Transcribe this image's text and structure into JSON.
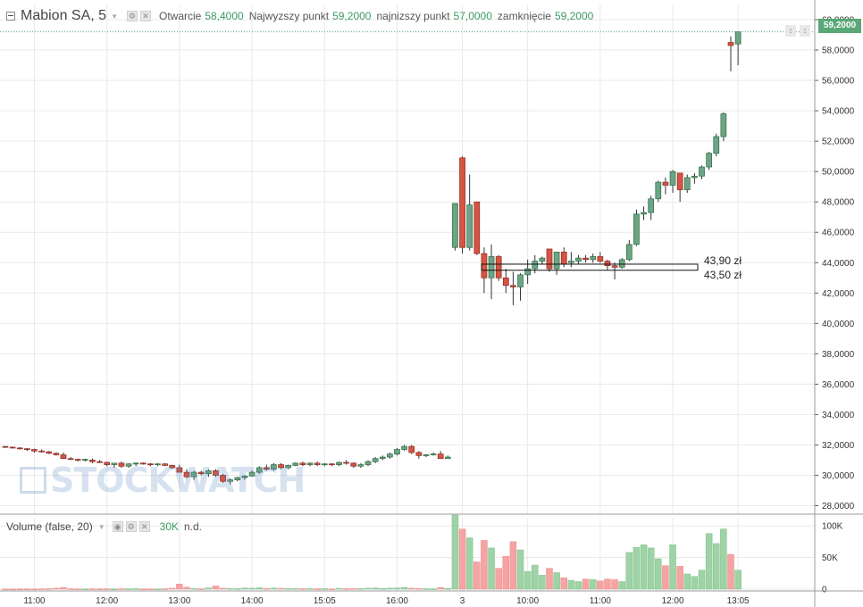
{
  "header": {
    "symbol": "Mabion SA, 5",
    "settings_icon": "gear-icon",
    "remove_icon": "close-icon",
    "open_label": "Otwarcie",
    "open_value": "58,4000",
    "high_label": "Najwyzszy punkt",
    "high_value": "59,2000",
    "low_label": "najnizszy punkt",
    "low_value": "57,0000",
    "close_label": "zamknięcie",
    "close_value": "59,2000"
  },
  "last_price_label": "59,2000",
  "volume_header": {
    "title": "Volume (false, 20)",
    "value": "30K",
    "na": "n.d."
  },
  "watermark": "STOCKWATCH",
  "annotations": {
    "upper": "43,90 zł",
    "lower": "43,50 zł"
  },
  "colors": {
    "up": "#5aa777",
    "down": "#d8413f",
    "up_fill": "#6ba583",
    "down_fill": "#d75442",
    "vol_up": "#9ed3a6",
    "vol_down": "#f5a3a3",
    "grid": "#e9e9e9"
  },
  "chart_data": {
    "type": "candlestick",
    "price_axis": {
      "min": 27500,
      "max": 61000,
      "ticks": [
        28000,
        30000,
        32000,
        34000,
        36000,
        38000,
        40000,
        42000,
        44000,
        46000,
        48000,
        50000,
        52000,
        54000,
        56000,
        58000,
        60000
      ],
      "labels": [
        "28,0000",
        "30,0000",
        "32,0000",
        "34,0000",
        "36,0000",
        "38,0000",
        "40,0000",
        "42,0000",
        "44,0000",
        "46,0000",
        "48,0000",
        "50,0000",
        "52,0000",
        "54,0000",
        "56,0000",
        "58,0000",
        "60,0000"
      ]
    },
    "volume_axis": {
      "min": 0,
      "max": 110000,
      "ticks": [
        0,
        50000,
        100000
      ],
      "labels": [
        "0",
        "50K",
        "100K"
      ]
    },
    "time_axis": {
      "labels": [
        "11:00",
        "12:00",
        "13:00",
        "14:00",
        "15:05",
        "16:00",
        "3",
        "10:00",
        "11:00",
        "12:00",
        "13:05"
      ],
      "label_bar_index": [
        4,
        14,
        24,
        34,
        44,
        54,
        63,
        72,
        82,
        92,
        101
      ]
    },
    "horizontal_band": {
      "upper": 43.9,
      "lower": 43.5
    },
    "candles": [
      {
        "o": 31.9,
        "h": 31.9,
        "l": 31.8,
        "c": 31.85,
        "v": 300
      },
      {
        "o": 31.85,
        "h": 31.9,
        "l": 31.8,
        "c": 31.8,
        "v": 200
      },
      {
        "o": 31.8,
        "h": 31.85,
        "l": 31.7,
        "c": 31.75,
        "v": 400
      },
      {
        "o": 31.75,
        "h": 31.8,
        "l": 31.6,
        "c": 31.7,
        "v": 500
      },
      {
        "o": 31.7,
        "h": 31.75,
        "l": 31.5,
        "c": 31.6,
        "v": 300
      },
      {
        "o": 31.6,
        "h": 31.7,
        "l": 31.5,
        "c": 31.55,
        "v": 600
      },
      {
        "o": 31.55,
        "h": 31.6,
        "l": 31.4,
        "c": 31.45,
        "v": 800
      },
      {
        "o": 31.45,
        "h": 31.5,
        "l": 31.3,
        "c": 31.35,
        "v": 1500
      },
      {
        "o": 31.35,
        "h": 31.5,
        "l": 31.3,
        "c": 31.1,
        "v": 2500
      },
      {
        "o": 31.1,
        "h": 31.2,
        "l": 31.0,
        "c": 31.05,
        "v": 700
      },
      {
        "o": 31.05,
        "h": 31.1,
        "l": 30.9,
        "c": 31.0,
        "v": 500
      },
      {
        "o": 31.0,
        "h": 31.1,
        "l": 30.9,
        "c": 31.05,
        "v": 400
      },
      {
        "o": 31.0,
        "h": 31.1,
        "l": 30.8,
        "c": 30.9,
        "v": 600
      },
      {
        "o": 30.9,
        "h": 31.0,
        "l": 30.8,
        "c": 30.85,
        "v": 500
      },
      {
        "o": 30.85,
        "h": 30.9,
        "l": 30.6,
        "c": 30.7,
        "v": 700
      },
      {
        "o": 30.7,
        "h": 30.8,
        "l": 30.5,
        "c": 30.8,
        "v": 300
      },
      {
        "o": 30.8,
        "h": 30.9,
        "l": 30.5,
        "c": 30.6,
        "v": 800
      },
      {
        "o": 30.6,
        "h": 30.8,
        "l": 30.5,
        "c": 30.75,
        "v": 600
      },
      {
        "o": 30.75,
        "h": 30.85,
        "l": 30.6,
        "c": 30.8,
        "v": 900
      },
      {
        "o": 30.8,
        "h": 30.85,
        "l": 30.7,
        "c": 30.75,
        "v": 400
      },
      {
        "o": 30.75,
        "h": 30.8,
        "l": 30.6,
        "c": 30.7,
        "v": 500
      },
      {
        "o": 30.7,
        "h": 30.8,
        "l": 30.6,
        "c": 30.75,
        "v": 300
      },
      {
        "o": 30.75,
        "h": 30.8,
        "l": 30.6,
        "c": 30.65,
        "v": 700
      },
      {
        "o": 30.65,
        "h": 30.7,
        "l": 30.4,
        "c": 30.5,
        "v": 1500
      },
      {
        "o": 30.5,
        "h": 30.7,
        "l": 30.3,
        "c": 30.2,
        "v": 8000
      },
      {
        "o": 30.2,
        "h": 30.4,
        "l": 29.8,
        "c": 29.9,
        "v": 3000
      },
      {
        "o": 29.9,
        "h": 30.3,
        "l": 29.7,
        "c": 30.2,
        "v": 1200
      },
      {
        "o": 30.2,
        "h": 30.3,
        "l": 30.0,
        "c": 30.1,
        "v": 600
      },
      {
        "o": 30.1,
        "h": 30.4,
        "l": 29.9,
        "c": 30.3,
        "v": 2000
      },
      {
        "o": 30.3,
        "h": 30.4,
        "l": 29.9,
        "c": 30.0,
        "v": 5000
      },
      {
        "o": 30.0,
        "h": 30.1,
        "l": 29.5,
        "c": 29.6,
        "v": 1500
      },
      {
        "o": 29.6,
        "h": 29.8,
        "l": 29.4,
        "c": 29.7,
        "v": 1200
      },
      {
        "o": 29.7,
        "h": 29.9,
        "l": 29.6,
        "c": 29.85,
        "v": 800
      },
      {
        "o": 29.85,
        "h": 30.0,
        "l": 29.7,
        "c": 29.95,
        "v": 1800
      },
      {
        "o": 29.95,
        "h": 30.3,
        "l": 29.9,
        "c": 30.2,
        "v": 1500
      },
      {
        "o": 30.2,
        "h": 30.6,
        "l": 30.1,
        "c": 30.5,
        "v": 2200
      },
      {
        "o": 30.5,
        "h": 30.7,
        "l": 30.3,
        "c": 30.4,
        "v": 1000
      },
      {
        "o": 30.4,
        "h": 30.8,
        "l": 30.3,
        "c": 30.7,
        "v": 1800
      },
      {
        "o": 30.7,
        "h": 30.8,
        "l": 30.4,
        "c": 30.5,
        "v": 1300
      },
      {
        "o": 30.5,
        "h": 30.7,
        "l": 30.4,
        "c": 30.65,
        "v": 1000
      },
      {
        "o": 30.65,
        "h": 30.85,
        "l": 30.6,
        "c": 30.8,
        "v": 1200
      },
      {
        "o": 30.8,
        "h": 30.9,
        "l": 30.6,
        "c": 30.7,
        "v": 700
      },
      {
        "o": 30.7,
        "h": 30.85,
        "l": 30.6,
        "c": 30.8,
        "v": 900
      },
      {
        "o": 30.8,
        "h": 30.9,
        "l": 30.6,
        "c": 30.7,
        "v": 600
      },
      {
        "o": 30.7,
        "h": 30.8,
        "l": 30.6,
        "c": 30.75,
        "v": 800
      },
      {
        "o": 30.75,
        "h": 30.8,
        "l": 30.6,
        "c": 30.7,
        "v": 500
      },
      {
        "o": 30.7,
        "h": 30.9,
        "l": 30.6,
        "c": 30.85,
        "v": 1300
      },
      {
        "o": 30.85,
        "h": 31.0,
        "l": 30.7,
        "c": 30.8,
        "v": 700
      },
      {
        "o": 30.8,
        "h": 30.85,
        "l": 30.5,
        "c": 30.6,
        "v": 900
      },
      {
        "o": 30.6,
        "h": 30.8,
        "l": 30.5,
        "c": 30.7,
        "v": 1100
      },
      {
        "o": 30.7,
        "h": 31.0,
        "l": 30.6,
        "c": 30.9,
        "v": 1500
      },
      {
        "o": 30.9,
        "h": 31.2,
        "l": 30.8,
        "c": 31.1,
        "v": 1800
      },
      {
        "o": 31.1,
        "h": 31.3,
        "l": 31.0,
        "c": 31.2,
        "v": 900
      },
      {
        "o": 31.2,
        "h": 31.5,
        "l": 31.1,
        "c": 31.4,
        "v": 1600
      },
      {
        "o": 31.4,
        "h": 31.8,
        "l": 31.3,
        "c": 31.7,
        "v": 2000
      },
      {
        "o": 31.7,
        "h": 32.0,
        "l": 31.6,
        "c": 31.9,
        "v": 2500
      },
      {
        "o": 31.9,
        "h": 32.0,
        "l": 31.4,
        "c": 31.5,
        "v": 1500
      },
      {
        "o": 31.5,
        "h": 31.6,
        "l": 31.1,
        "c": 31.3,
        "v": 1200
      },
      {
        "o": 31.3,
        "h": 31.4,
        "l": 31.2,
        "c": 31.35,
        "v": 800
      },
      {
        "o": 31.35,
        "h": 31.5,
        "l": 31.3,
        "c": 31.4,
        "v": 600
      },
      {
        "o": 31.4,
        "h": 31.6,
        "l": 31.2,
        "c": 31.1,
        "v": 2500
      },
      {
        "o": 31.1,
        "h": 31.3,
        "l": 31.1,
        "c": 31.2,
        "v": 1000
      },
      {
        "o": 45.0,
        "h": 47.9,
        "l": 44.8,
        "c": 47.9,
        "v": 117000
      },
      {
        "o": 50.9,
        "h": 51.0,
        "l": 44.6,
        "c": 45.0,
        "v": 95000
      },
      {
        "o": 45.0,
        "h": 49.8,
        "l": 44.8,
        "c": 47.8,
        "v": 81000
      },
      {
        "o": 48.0,
        "h": 48.0,
        "l": 44.5,
        "c": 44.6,
        "v": 43000
      },
      {
        "o": 44.6,
        "h": 45.0,
        "l": 42.0,
        "c": 43.0,
        "v": 77000
      },
      {
        "o": 43.0,
        "h": 45.2,
        "l": 41.6,
        "c": 44.4,
        "v": 65000
      },
      {
        "o": 44.4,
        "h": 44.5,
        "l": 42.8,
        "c": 43.0,
        "v": 33000
      },
      {
        "o": 43.0,
        "h": 43.6,
        "l": 42.0,
        "c": 42.5,
        "v": 52000
      },
      {
        "o": 42.5,
        "h": 43.4,
        "l": 41.2,
        "c": 42.4,
        "v": 75000
      },
      {
        "o": 42.4,
        "h": 43.3,
        "l": 41.5,
        "c": 43.2,
        "v": 62000
      },
      {
        "o": 43.2,
        "h": 44.2,
        "l": 42.6,
        "c": 43.6,
        "v": 28000
      },
      {
        "o": 43.6,
        "h": 44.5,
        "l": 43.3,
        "c": 44.1,
        "v": 38000
      },
      {
        "o": 44.1,
        "h": 44.4,
        "l": 43.9,
        "c": 44.3,
        "v": 22000
      },
      {
        "o": 44.9,
        "h": 44.9,
        "l": 43.4,
        "c": 43.6,
        "v": 33000
      },
      {
        "o": 43.6,
        "h": 44.6,
        "l": 43.2,
        "c": 44.7,
        "v": 26000
      },
      {
        "o": 44.7,
        "h": 45.0,
        "l": 43.7,
        "c": 43.9,
        "v": 18000
      },
      {
        "o": 44.0,
        "h": 44.7,
        "l": 43.7,
        "c": 44.1,
        "v": 14000
      },
      {
        "o": 44.1,
        "h": 44.5,
        "l": 43.9,
        "c": 44.3,
        "v": 12000
      },
      {
        "o": 44.3,
        "h": 44.5,
        "l": 44.0,
        "c": 44.2,
        "v": 16000
      },
      {
        "o": 44.2,
        "h": 44.6,
        "l": 44.0,
        "c": 44.4,
        "v": 15000
      },
      {
        "o": 44.4,
        "h": 44.7,
        "l": 44.0,
        "c": 44.1,
        "v": 13000
      },
      {
        "o": 44.1,
        "h": 44.2,
        "l": 43.5,
        "c": 43.8,
        "v": 16000
      },
      {
        "o": 43.8,
        "h": 44.0,
        "l": 42.9,
        "c": 43.7,
        "v": 15000
      },
      {
        "o": 43.7,
        "h": 44.3,
        "l": 43.6,
        "c": 44.2,
        "v": 12000
      },
      {
        "o": 44.2,
        "h": 45.5,
        "l": 44.1,
        "c": 45.2,
        "v": 58000
      },
      {
        "o": 45.2,
        "h": 47.5,
        "l": 45.1,
        "c": 47.2,
        "v": 66000
      },
      {
        "o": 47.2,
        "h": 47.7,
        "l": 46.8,
        "c": 47.3,
        "v": 70000
      },
      {
        "o": 47.3,
        "h": 48.4,
        "l": 46.8,
        "c": 48.2,
        "v": 65000
      },
      {
        "o": 48.2,
        "h": 49.4,
        "l": 48.0,
        "c": 49.3,
        "v": 48000
      },
      {
        "o": 49.3,
        "h": 49.6,
        "l": 48.5,
        "c": 49.1,
        "v": 37000
      },
      {
        "o": 49.1,
        "h": 50.1,
        "l": 48.6,
        "c": 50.0,
        "v": 70000
      },
      {
        "o": 49.9,
        "h": 49.9,
        "l": 48.0,
        "c": 48.8,
        "v": 36000
      },
      {
        "o": 48.8,
        "h": 49.8,
        "l": 48.6,
        "c": 49.6,
        "v": 24000
      },
      {
        "o": 49.6,
        "h": 49.9,
        "l": 49.2,
        "c": 49.7,
        "v": 20000
      },
      {
        "o": 49.7,
        "h": 50.4,
        "l": 49.5,
        "c": 50.3,
        "v": 30000
      },
      {
        "o": 50.3,
        "h": 51.3,
        "l": 50.1,
        "c": 51.2,
        "v": 88000
      },
      {
        "o": 51.2,
        "h": 52.5,
        "l": 51.0,
        "c": 52.3,
        "v": 72000
      },
      {
        "o": 52.3,
        "h": 53.9,
        "l": 52.0,
        "c": 53.8,
        "v": 95000
      },
      {
        "o": 58.5,
        "h": 58.9,
        "l": 56.6,
        "c": 58.3,
        "v": 55000
      },
      {
        "o": 58.4,
        "h": 59.2,
        "l": 57.0,
        "c": 59.2,
        "v": 30000
      }
    ]
  }
}
